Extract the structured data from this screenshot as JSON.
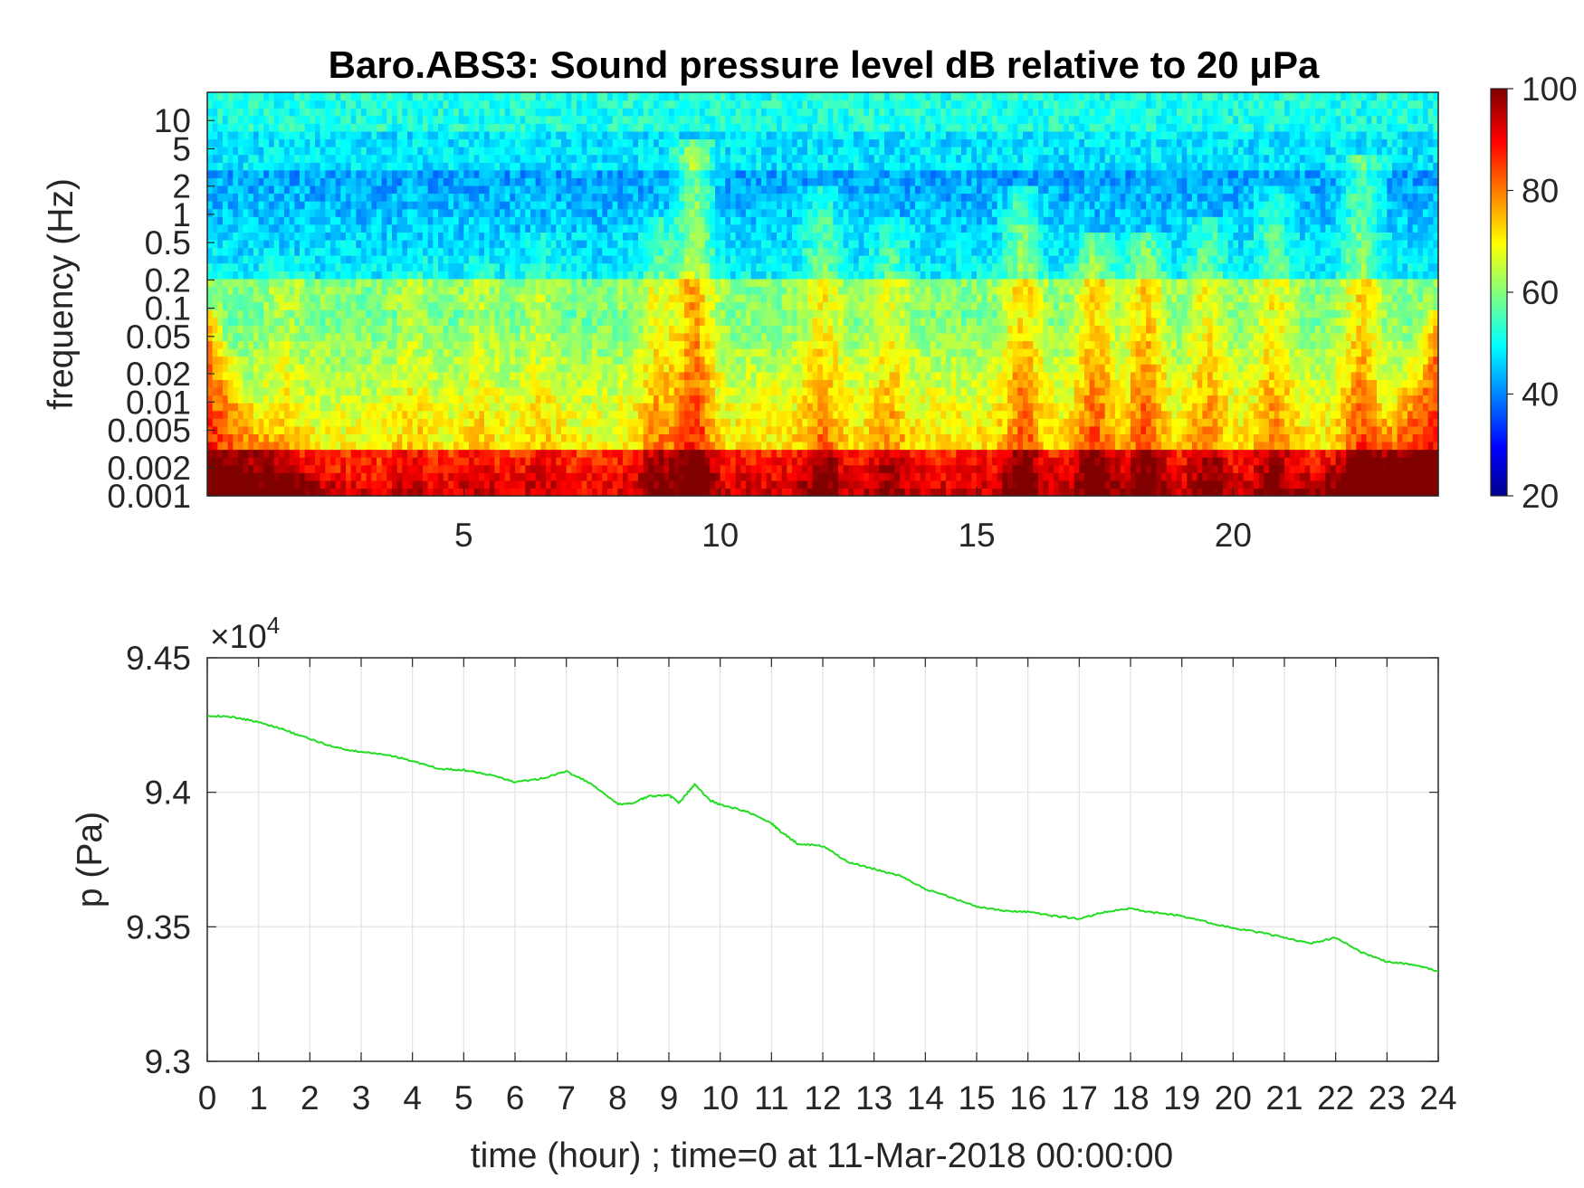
{
  "chart_data": [
    {
      "type": "heatmap",
      "title": "Baro.ABS3: Sound pressure level dB relative to 20 μPa",
      "ylabel": "frequency (Hz)",
      "xlabel": "",
      "x_ticks": [
        "5",
        "10",
        "15",
        "20"
      ],
      "x_tick_values": [
        5,
        10,
        15,
        20
      ],
      "xlim": [
        0,
        24
      ],
      "y_scale": "log",
      "ylim": [
        0.001,
        20
      ],
      "y_ticks": [
        "10",
        "5",
        "2",
        "1",
        "0.5",
        "0.2",
        "0.1",
        "0.05",
        "0.02",
        "0.01",
        "0.005",
        "0.002",
        "0.001"
      ],
      "y_tick_values": [
        10,
        5,
        2,
        1,
        0.5,
        0.2,
        0.1,
        0.05,
        0.02,
        0.01,
        0.005,
        0.002,
        0.001
      ],
      "colorbar": {
        "colormap": "jet",
        "range": [
          20,
          100
        ],
        "ticks": [
          "100",
          "80",
          "60",
          "40",
          "20"
        ],
        "tick_values": [
          100,
          80,
          60,
          40,
          20
        ]
      },
      "colors": {
        "jet_stops": [
          "#00008f",
          "#0000ff",
          "#00ffff",
          "#ffff00",
          "#ff0000",
          "#800000"
        ]
      },
      "bursts": [
        {
          "t": 9.5,
          "amp": 16,
          "fmax": 3
        },
        {
          "t": 8.8,
          "amp": 8,
          "fmax": 0.5
        },
        {
          "t": 12.0,
          "amp": 10,
          "fmax": 1
        },
        {
          "t": 13.3,
          "amp": 7,
          "fmax": 0.5
        },
        {
          "t": 15.9,
          "amp": 12,
          "fmax": 1
        },
        {
          "t": 17.3,
          "amp": 13,
          "fmax": 0.3
        },
        {
          "t": 18.3,
          "amp": 13,
          "fmax": 0.3
        },
        {
          "t": 19.5,
          "amp": 9,
          "fmax": 0.5
        },
        {
          "t": 20.8,
          "amp": 9,
          "fmax": 1
        },
        {
          "t": 22.5,
          "amp": 12,
          "fmax": 2
        },
        {
          "t": 1.5,
          "amp": 4,
          "fmax": 0.2
        },
        {
          "t": 4.0,
          "amp": 4,
          "fmax": 0.2
        },
        {
          "t": 5.3,
          "amp": 4,
          "fmax": 0.2
        },
        {
          "t": 6.5,
          "amp": 4,
          "fmax": 0.3
        }
      ]
    },
    {
      "type": "line",
      "xlabel": "time (hour) ; time=0 at 11-Mar-2018 00:00:00",
      "ylabel": "p (Pa)",
      "exponent_label": "×10",
      "exponent_power": "4",
      "xlim": [
        0,
        24
      ],
      "ylim": [
        9.3,
        9.45
      ],
      "x_ticks": [
        "0",
        "1",
        "2",
        "3",
        "4",
        "5",
        "6",
        "7",
        "8",
        "9",
        "10",
        "11",
        "12",
        "13",
        "14",
        "15",
        "16",
        "17",
        "18",
        "19",
        "20",
        "21",
        "22",
        "23",
        "24"
      ],
      "y_ticks": [
        "9.45",
        "9.4",
        "9.35",
        "9.3"
      ],
      "y_tick_values": [
        9.45,
        9.4,
        9.35,
        9.3
      ],
      "grid": true,
      "color": "#22dd22",
      "x": [
        0,
        0.5,
        1,
        1.5,
        2,
        2.5,
        3,
        3.5,
        4,
        4.5,
        5,
        5.5,
        6,
        6.5,
        7,
        7.5,
        8,
        8.3,
        8.6,
        9,
        9.2,
        9.5,
        9.8,
        10,
        10.5,
        11,
        11.2,
        11.5,
        12,
        12.5,
        13,
        13.5,
        14,
        14.5,
        15,
        15.5,
        16,
        16.5,
        17,
        17.5,
        18,
        18.5,
        19,
        19.5,
        20,
        20.5,
        21,
        21.5,
        22,
        22.5,
        23,
        23.5,
        24
      ],
      "y": [
        9.4286,
        9.4279,
        9.4262,
        9.4232,
        9.4198,
        9.4167,
        9.4149,
        9.414,
        9.4117,
        9.4087,
        9.4083,
        9.4065,
        9.4038,
        9.405,
        9.4078,
        9.403,
        9.3955,
        9.396,
        9.3985,
        9.399,
        9.396,
        9.403,
        9.397,
        9.3955,
        9.393,
        9.3885,
        9.385,
        9.381,
        9.38,
        9.374,
        9.3715,
        9.369,
        9.364,
        9.361,
        9.3575,
        9.356,
        9.3555,
        9.354,
        9.353,
        9.3555,
        9.3568,
        9.3552,
        9.354,
        9.3517,
        9.3495,
        9.348,
        9.346,
        9.3438,
        9.346,
        9.3405,
        9.337,
        9.336,
        9.3335
      ]
    }
  ]
}
